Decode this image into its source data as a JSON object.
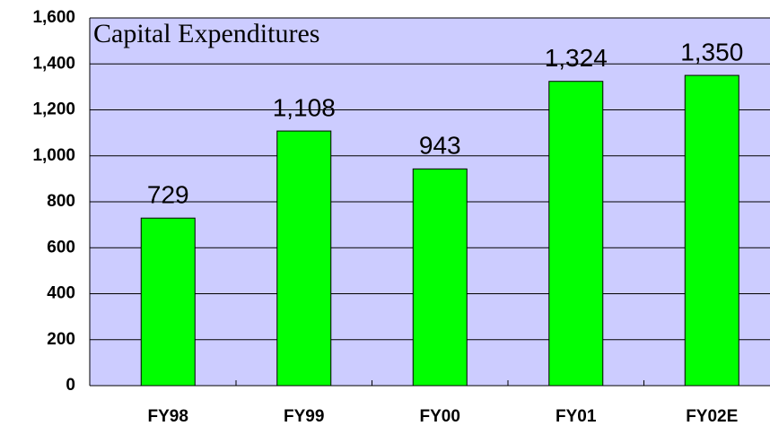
{
  "chart_data": {
    "type": "bar",
    "title": "Capital Expenditures",
    "categories": [
      "FY98",
      "FY99",
      "FY00",
      "FY01",
      "FY02E"
    ],
    "values": [
      729,
      1108,
      943,
      1324,
      1350
    ],
    "value_labels": [
      "729",
      "1,108",
      "943",
      "1,324",
      "1,350"
    ],
    "color": "#00ff00",
    "ylim": [
      0,
      1600
    ],
    "yticks": [
      0,
      200,
      400,
      600,
      800,
      {
        "value": 1000,
        "label": "1,000"
      },
      {
        "value": 1200,
        "label": "1,200"
      },
      {
        "value": 1400,
        "label": "1,400"
      },
      {
        "value": 1600,
        "label": "1,600"
      }
    ],
    "grid": true
  }
}
